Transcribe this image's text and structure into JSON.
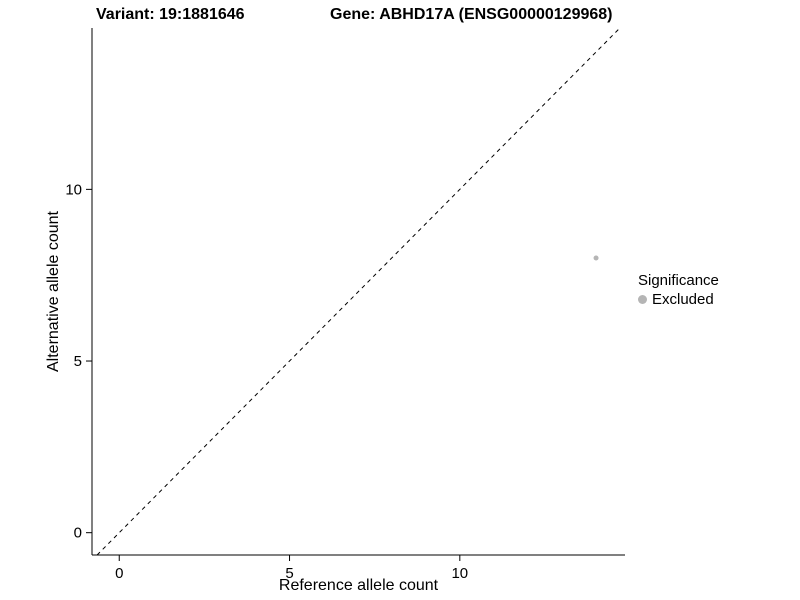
{
  "titles": {
    "variant": "Variant: 19:1881646",
    "gene": "Gene: ABHD17A (ENSG00000129968)"
  },
  "legend": {
    "title": "Significance",
    "items": [
      {
        "label": "Excluded",
        "color": "#b5b5b5"
      }
    ]
  },
  "chart_data": {
    "type": "scatter",
    "title": "Variant: 19:1881646  /  Gene: ABHD17A (ENSG00000129968)",
    "xlabel": "Reference allele count",
    "ylabel": "Alternative allele count",
    "xlim": [
      -0.8,
      14.85
    ],
    "ylim": [
      -0.65,
      14.7
    ],
    "xticks": [
      0,
      5,
      10
    ],
    "yticks": [
      0,
      5,
      10
    ],
    "grid": false,
    "legend_position": "right",
    "series": [
      {
        "name": "Excluded",
        "color": "#b5b5b5",
        "points": [
          {
            "x": 14,
            "y": 8
          }
        ]
      }
    ],
    "identity_line": {
      "style": "dashed",
      "from": [
        -0.65,
        -0.65
      ],
      "to": [
        14.7,
        14.7
      ],
      "color": "#000000"
    }
  }
}
